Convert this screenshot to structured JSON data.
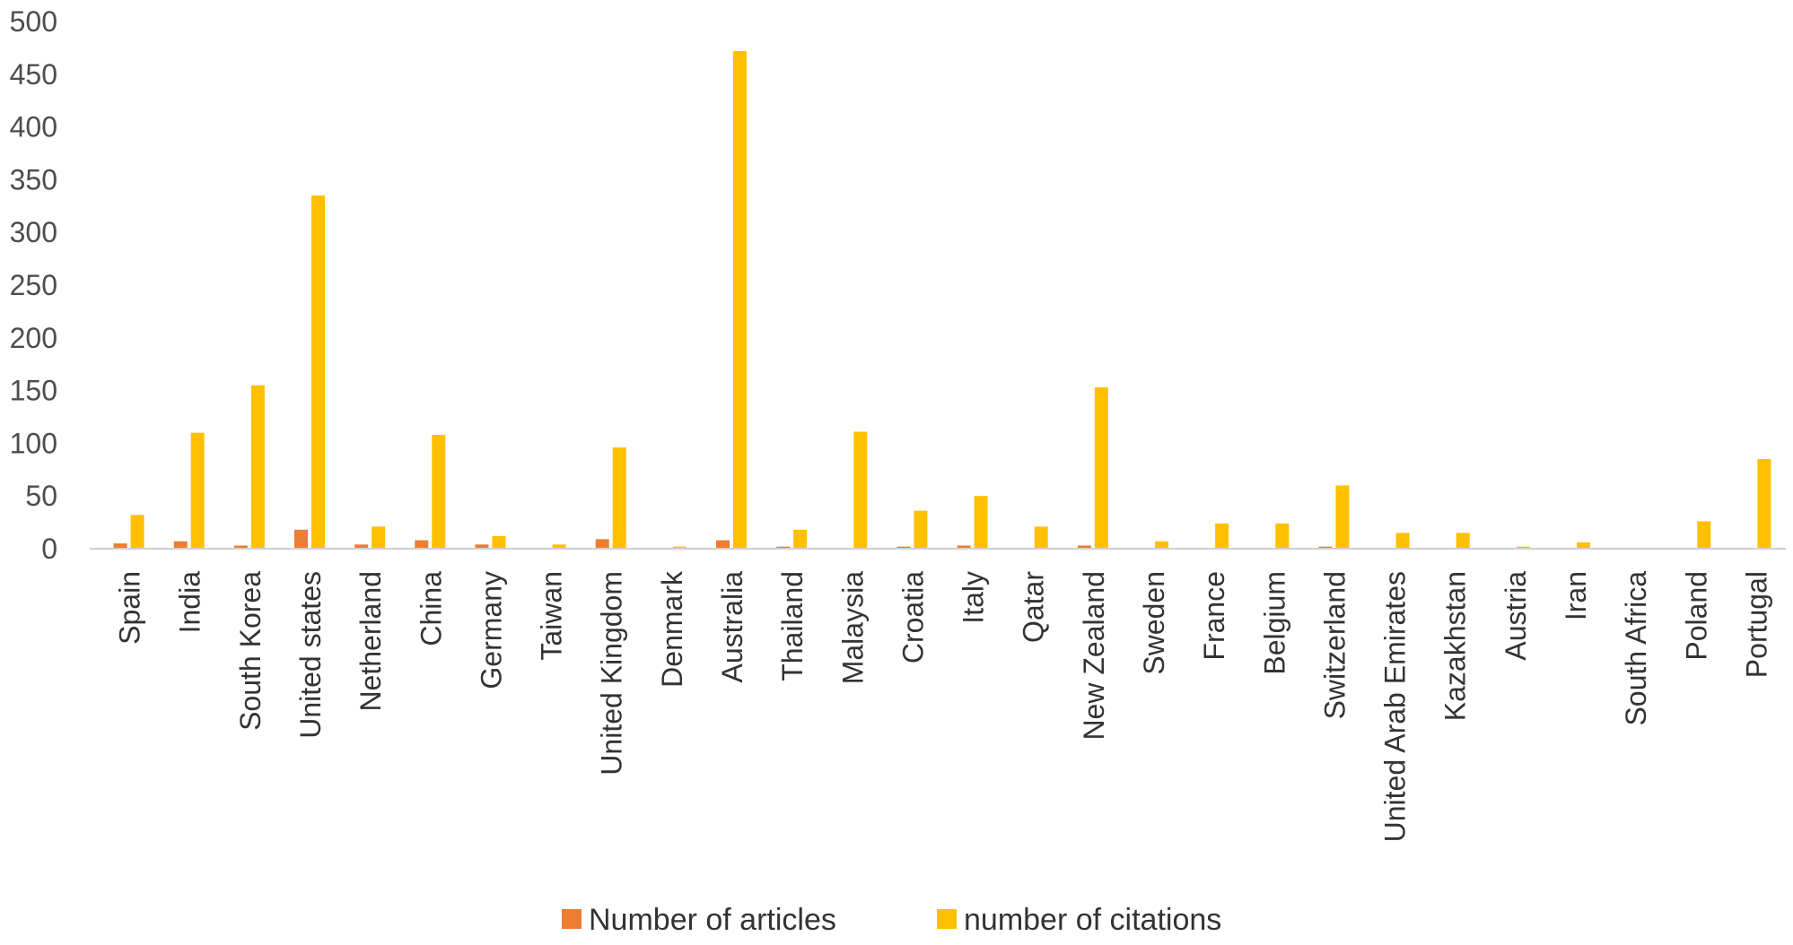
{
  "chart_data": {
    "type": "bar",
    "title": "",
    "xlabel": "",
    "ylabel": "",
    "ylim": [
      0,
      500
    ],
    "yticks": [
      0,
      50,
      100,
      150,
      200,
      250,
      300,
      350,
      400,
      450,
      500
    ],
    "grid": false,
    "legend_position": "bottom",
    "categories": [
      "Spain",
      "India",
      "South Korea",
      "United states",
      "Netherland",
      "China",
      "Germany",
      "Taiwan",
      "United Kingdom",
      "Denmark",
      "Australia",
      "Thailand",
      "Malaysia",
      "Croatia",
      "Italy",
      "Qatar",
      "New Zealand",
      "Sweden",
      "France",
      "Belgium",
      "Switzerland",
      "United Arab Emirates",
      "Kazakhstan",
      "Austria",
      "Iran",
      "South Africa",
      "Poland",
      "Portugal"
    ],
    "series": [
      {
        "name": "Number of articles",
        "color": "#ED7D31",
        "values": [
          5,
          7,
          3,
          18,
          4,
          8,
          4,
          0,
          9,
          0,
          8,
          2,
          0,
          2,
          3,
          0,
          3,
          0,
          0,
          0,
          2,
          0,
          0,
          0,
          0,
          0,
          0,
          0
        ]
      },
      {
        "name": "number of citations",
        "color": "#FFC000",
        "values": [
          32,
          110,
          155,
          335,
          21,
          108,
          12,
          4,
          96,
          2,
          472,
          18,
          111,
          36,
          50,
          21,
          153,
          7,
          24,
          24,
          60,
          15,
          15,
          2,
          6,
          0,
          26,
          85
        ]
      }
    ]
  }
}
